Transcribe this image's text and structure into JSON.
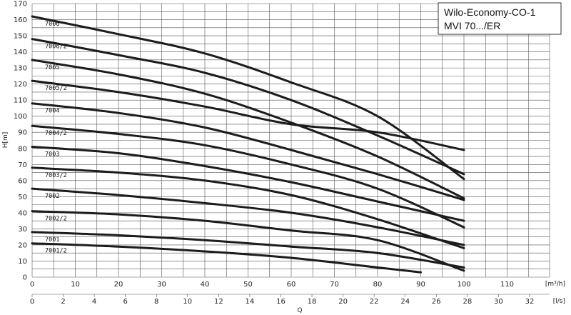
{
  "chart_data": {
    "type": "line",
    "title_lines": [
      "Wilo-Economy-CO-1",
      "MVI 70.../ER"
    ],
    "ylabel": "H[m]",
    "xlabel": "Q",
    "x_unit_primary": "[m³/h]",
    "x_unit_secondary": "[l/s]",
    "xlim": [
      0,
      120
    ],
    "ylim": [
      0,
      170
    ],
    "grid": true,
    "y_ticks": [
      "0",
      "10",
      "20",
      "30",
      "40",
      "50",
      "60",
      "70",
      "80",
      "90",
      "100",
      "110",
      "120",
      "130",
      "140",
      "150",
      "160",
      "170"
    ],
    "x_ticks_primary": [
      "0",
      "10",
      "20",
      "30",
      "40",
      "50",
      "60",
      "70",
      "80",
      "90",
      "100",
      "110"
    ],
    "x_ticks_secondary": [
      "0",
      "2",
      "4",
      "6",
      "8",
      "10",
      "12",
      "14",
      "16",
      "18",
      "20",
      "22",
      "24",
      "26",
      "28",
      "30",
      "32"
    ],
    "series": [
      {
        "name": "7006",
        "x": [
          0,
          20,
          40,
          60,
          80,
          100
        ],
        "y": [
          162,
          151,
          139,
          121,
          100,
          61
        ]
      },
      {
        "name": "7006/2",
        "x": [
          0,
          20,
          40,
          60,
          80,
          100
        ],
        "y": [
          148,
          138,
          127,
          110,
          88,
          64
        ]
      },
      {
        "name": "7005",
        "x": [
          0,
          20,
          40,
          60,
          80,
          100
        ],
        "y": [
          135,
          126,
          114,
          96,
          75,
          49
        ]
      },
      {
        "name": "7005/2",
        "x": [
          0,
          20,
          40,
          60,
          80,
          100
        ],
        "y": [
          122,
          115,
          106,
          95,
          90,
          79
        ]
      },
      {
        "name": "7004",
        "x": [
          0,
          20,
          40,
          60,
          80,
          100
        ],
        "y": [
          108,
          102,
          93,
          79,
          64,
          48
        ]
      },
      {
        "name": "7004/2",
        "x": [
          0,
          20,
          40,
          60,
          80,
          100
        ],
        "y": [
          94,
          89,
          82,
          70,
          55,
          31
        ]
      },
      {
        "name": "7003",
        "x": [
          0,
          20,
          40,
          60,
          80,
          100
        ],
        "y": [
          81,
          77,
          69,
          59,
          47,
          35
        ]
      },
      {
        "name": "7003/2",
        "x": [
          0,
          20,
          40,
          60,
          80,
          100
        ],
        "y": [
          68,
          65,
          60,
          51,
          36,
          18
        ]
      },
      {
        "name": "7002",
        "x": [
          0,
          20,
          40,
          60,
          80,
          100
        ],
        "y": [
          55,
          51,
          46,
          40,
          31,
          20
        ]
      },
      {
        "name": "7002/2",
        "x": [
          0,
          20,
          40,
          60,
          80,
          100
        ],
        "y": [
          41,
          39,
          35,
          29,
          23,
          4
        ]
      },
      {
        "name": "7001",
        "x": [
          0,
          20,
          40,
          60,
          80,
          100
        ],
        "y": [
          28,
          26,
          23,
          19,
          15,
          6
        ]
      },
      {
        "name": "7001/2",
        "x": [
          0,
          20,
          40,
          60,
          80,
          90
        ],
        "y": [
          21,
          19,
          16,
          12,
          6,
          3
        ]
      }
    ]
  }
}
